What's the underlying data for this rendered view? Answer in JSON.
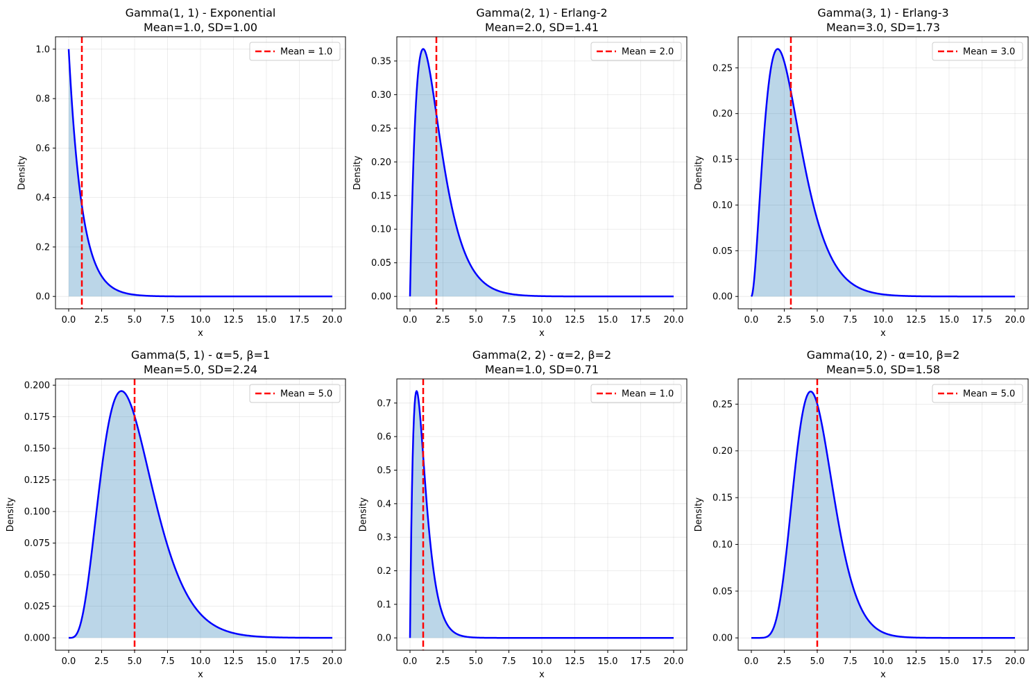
{
  "figure": {
    "rows": 2,
    "cols": 3
  },
  "colors": {
    "pdf_line": "#0000ff",
    "fill": "#1f77b4",
    "mean_line": "#ff0000",
    "grid": "#b0b0b0",
    "axes": "#000000",
    "legend_border": "#cccccc"
  },
  "chart_data": [
    {
      "type": "area",
      "title": "Gamma(1, 1) - Exponential",
      "subtitle": "Mean=1.0, SD=1.00",
      "xlabel": "x",
      "ylabel": "Density",
      "alpha": 1,
      "beta": 1,
      "mean": 1.0,
      "x_range": [
        0,
        20
      ],
      "xlim": [
        -1,
        21
      ],
      "ylim": [
        -0.05,
        1.05
      ],
      "xticks": [
        0,
        2.5,
        5,
        7.5,
        10,
        12.5,
        15,
        17.5,
        20
      ],
      "xtick_labels": [
        "0.0",
        "2.5",
        "5.0",
        "7.5",
        "10.0",
        "12.5",
        "15.0",
        "17.5",
        "20.0"
      ],
      "yticks": [
        0,
        0.2,
        0.4,
        0.6,
        0.8,
        1.0
      ],
      "ytick_labels": [
        "0.0",
        "0.2",
        "0.4",
        "0.6",
        "0.8",
        "1.0"
      ],
      "legend": "Mean = 1.0",
      "legend_loc": "upper right",
      "grid": true
    },
    {
      "type": "area",
      "title": "Gamma(2, 1) - Erlang-2",
      "subtitle": "Mean=2.0, SD=1.41",
      "xlabel": "x",
      "ylabel": "Density",
      "alpha": 2,
      "beta": 1,
      "mean": 2.0,
      "x_range": [
        0,
        20
      ],
      "xlim": [
        -1,
        21
      ],
      "ylim": [
        -0.0184,
        0.386
      ],
      "xticks": [
        0,
        2.5,
        5,
        7.5,
        10,
        12.5,
        15,
        17.5,
        20
      ],
      "xtick_labels": [
        "0.0",
        "2.5",
        "5.0",
        "7.5",
        "10.0",
        "12.5",
        "15.0",
        "17.5",
        "20.0"
      ],
      "yticks": [
        0,
        0.05,
        0.1,
        0.15,
        0.2,
        0.25,
        0.3,
        0.35
      ],
      "ytick_labels": [
        "0.00",
        "0.05",
        "0.10",
        "0.15",
        "0.20",
        "0.25",
        "0.30",
        "0.35"
      ],
      "legend": "Mean = 2.0",
      "legend_loc": "upper right",
      "grid": true
    },
    {
      "type": "area",
      "title": "Gamma(3, 1) - Erlang-3",
      "subtitle": "Mean=3.0, SD=1.73",
      "xlabel": "x",
      "ylabel": "Density",
      "alpha": 3,
      "beta": 1,
      "mean": 3.0,
      "x_range": [
        0,
        20
      ],
      "xlim": [
        -1,
        21
      ],
      "ylim": [
        -0.0135,
        0.284
      ],
      "xticks": [
        0,
        2.5,
        5,
        7.5,
        10,
        12.5,
        15,
        17.5,
        20
      ],
      "xtick_labels": [
        "0.0",
        "2.5",
        "5.0",
        "7.5",
        "10.0",
        "12.5",
        "15.0",
        "17.5",
        "20.0"
      ],
      "yticks": [
        0,
        0.05,
        0.1,
        0.15,
        0.2,
        0.25
      ],
      "ytick_labels": [
        "0.00",
        "0.05",
        "0.10",
        "0.15",
        "0.20",
        "0.25"
      ],
      "legend": "Mean = 3.0",
      "legend_loc": "upper right",
      "grid": true
    },
    {
      "type": "area",
      "title": "Gamma(5, 1) - α=5, β=1",
      "subtitle": "Mean=5.0, SD=2.24",
      "xlabel": "x",
      "ylabel": "Density",
      "alpha": 5,
      "beta": 1,
      "mean": 5.0,
      "x_range": [
        0,
        20
      ],
      "xlim": [
        -1,
        21
      ],
      "ylim": [
        -0.0098,
        0.205
      ],
      "xticks": [
        0,
        2.5,
        5,
        7.5,
        10,
        12.5,
        15,
        17.5,
        20
      ],
      "xtick_labels": [
        "0.0",
        "2.5",
        "5.0",
        "7.5",
        "10.0",
        "12.5",
        "15.0",
        "17.5",
        "20.0"
      ],
      "yticks": [
        0,
        0.025,
        0.05,
        0.075,
        0.1,
        0.125,
        0.15,
        0.175,
        0.2
      ],
      "ytick_labels": [
        "0.000",
        "0.025",
        "0.050",
        "0.075",
        "0.100",
        "0.125",
        "0.150",
        "0.175",
        "0.200"
      ],
      "legend": "Mean = 5.0",
      "legend_loc": "upper right",
      "grid": true
    },
    {
      "type": "area",
      "title": "Gamma(2, 2) - α=2, β=2",
      "subtitle": "Mean=1.0, SD=0.71",
      "xlabel": "x",
      "ylabel": "Density",
      "alpha": 2,
      "beta": 2,
      "mean": 1.0,
      "x_range": [
        0,
        20
      ],
      "xlim": [
        -1,
        21
      ],
      "ylim": [
        -0.0368,
        0.772
      ],
      "xticks": [
        0,
        2.5,
        5,
        7.5,
        10,
        12.5,
        15,
        17.5,
        20
      ],
      "xtick_labels": [
        "0.0",
        "2.5",
        "5.0",
        "7.5",
        "10.0",
        "12.5",
        "15.0",
        "17.5",
        "20.0"
      ],
      "yticks": [
        0,
        0.1,
        0.2,
        0.3,
        0.4,
        0.5,
        0.6,
        0.7
      ],
      "ytick_labels": [
        "0.0",
        "0.1",
        "0.2",
        "0.3",
        "0.4",
        "0.5",
        "0.6",
        "0.7"
      ],
      "legend": "Mean = 1.0",
      "legend_loc": "upper right",
      "grid": true
    },
    {
      "type": "area",
      "title": "Gamma(10, 2) - α=10, β=2",
      "subtitle": "Mean=5.0, SD=1.58",
      "xlabel": "x",
      "ylabel": "Density",
      "alpha": 10,
      "beta": 2,
      "mean": 5.0,
      "x_range": [
        0,
        20
      ],
      "xlim": [
        -1,
        21
      ],
      "ylim": [
        -0.0132,
        0.277
      ],
      "xticks": [
        0,
        2.5,
        5,
        7.5,
        10,
        12.5,
        15,
        17.5,
        20
      ],
      "xtick_labels": [
        "0.0",
        "2.5",
        "5.0",
        "7.5",
        "10.0",
        "12.5",
        "15.0",
        "17.5",
        "20.0"
      ],
      "yticks": [
        0,
        0.05,
        0.1,
        0.15,
        0.2,
        0.25
      ],
      "ytick_labels": [
        "0.00",
        "0.05",
        "0.10",
        "0.15",
        "0.20",
        "0.25"
      ],
      "legend": "Mean = 5.0",
      "legend_loc": "upper right",
      "grid": true
    }
  ]
}
